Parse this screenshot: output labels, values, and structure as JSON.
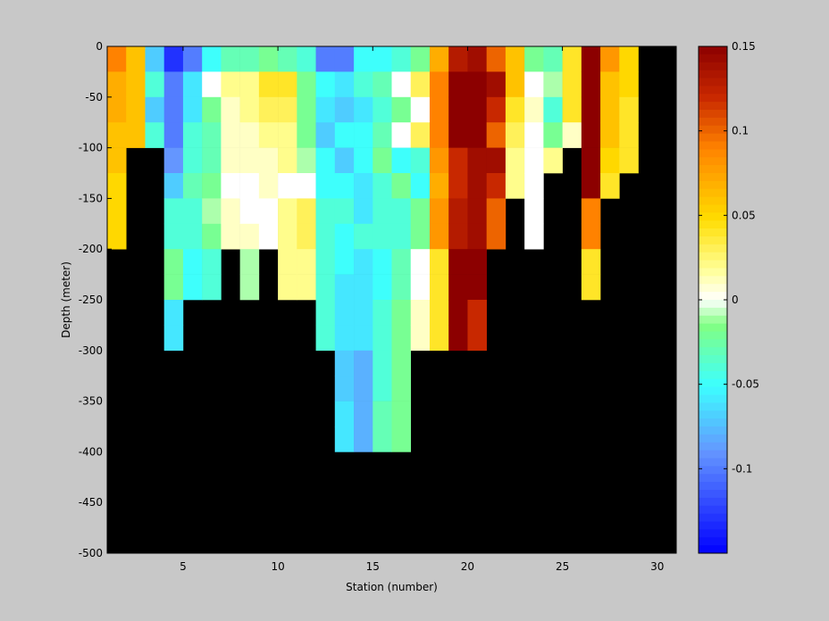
{
  "chart_data": {
    "type": "heatmap",
    "title": "",
    "xlabel": "Station (number)",
    "ylabel": "Depth (meter)",
    "x_range": [
      1,
      31
    ],
    "y_range": [
      -500,
      0
    ],
    "x_ticks": [
      5,
      10,
      15,
      20,
      25,
      30
    ],
    "y_ticks": [
      0,
      -50,
      -100,
      -150,
      -200,
      -250,
      -300,
      -350,
      -400,
      -450,
      -500
    ],
    "colorbar": {
      "range": [
        -0.15,
        0.15
      ],
      "ticks": [
        0.15,
        0.1,
        0.05,
        0,
        -0.05,
        -0.1
      ],
      "tick_labels": [
        "0.15",
        "0.1",
        "0.05",
        "0",
        "-0.05",
        "-0.1"
      ],
      "colormap": "jet-white-center"
    },
    "missing_color": "#000000",
    "depth_bin": 25,
    "columns": [
      {
        "station": 1,
        "values": [
          0.09,
          0.07,
          0.07,
          0.06,
          0.06,
          0.05,
          0.05,
          0.05,
          null,
          null,
          null,
          null,
          null,
          null,
          null,
          null,
          null,
          null,
          null,
          null
        ]
      },
      {
        "station": 2,
        "values": [
          0.06,
          0.06,
          0.06,
          0.06,
          null,
          null,
          null,
          null,
          null,
          null,
          null,
          null,
          null,
          null,
          null,
          null,
          null,
          null,
          null,
          null
        ]
      },
      {
        "station": 3,
        "values": [
          -0.07,
          -0.04,
          -0.07,
          -0.04,
          null,
          null,
          null,
          null,
          null,
          null,
          null,
          null,
          null,
          null,
          null,
          null,
          null,
          null,
          null,
          null
        ]
      },
      {
        "station": 4,
        "values": [
          -0.13,
          -0.1,
          -0.1,
          -0.1,
          -0.09,
          -0.07,
          -0.04,
          -0.04,
          -0.02,
          -0.02,
          -0.06,
          -0.06,
          null,
          null,
          null,
          null,
          null,
          null,
          null,
          null
        ]
      },
      {
        "station": 5,
        "values": [
          -0.1,
          -0.06,
          -0.06,
          -0.04,
          -0.04,
          -0.03,
          -0.04,
          -0.04,
          -0.05,
          -0.05,
          null,
          null,
          null,
          null,
          null,
          null,
          null,
          null,
          null,
          null
        ]
      },
      {
        "station": 6,
        "values": [
          -0.05,
          0.0,
          -0.02,
          -0.03,
          -0.03,
          -0.02,
          -0.01,
          -0.02,
          -0.04,
          -0.04,
          null,
          null,
          null,
          null,
          null,
          null,
          null,
          null,
          null,
          null
        ]
      },
      {
        "station": 7,
        "values": [
          -0.03,
          0.02,
          0.01,
          0.01,
          0.01,
          0.0,
          0.01,
          0.01,
          null,
          null,
          null,
          null,
          null,
          null,
          null,
          null,
          null,
          null,
          null,
          null
        ]
      },
      {
        "station": 8,
        "values": [
          -0.03,
          0.02,
          0.02,
          0.01,
          0.01,
          0.0,
          0.0,
          0.01,
          -0.01,
          -0.01,
          null,
          null,
          null,
          null,
          null,
          null,
          null,
          null,
          null,
          null
        ]
      },
      {
        "station": 9,
        "values": [
          -0.02,
          0.04,
          0.03,
          0.02,
          0.01,
          0.01,
          0.0,
          0.0,
          null,
          null,
          null,
          null,
          null,
          null,
          null,
          null,
          null,
          null,
          null,
          null
        ]
      },
      {
        "station": 10,
        "values": [
          -0.03,
          0.04,
          0.03,
          0.02,
          0.02,
          0.0,
          0.02,
          0.02,
          0.02,
          0.02,
          null,
          null,
          null,
          null,
          null,
          null,
          null,
          null,
          null,
          null
        ]
      },
      {
        "station": 11,
        "values": [
          -0.04,
          -0.02,
          -0.02,
          -0.02,
          -0.01,
          0.0,
          0.03,
          0.03,
          0.02,
          0.02,
          null,
          null,
          null,
          null,
          null,
          null,
          null,
          null,
          null,
          null
        ]
      },
      {
        "station": 12,
        "values": [
          -0.1,
          -0.05,
          -0.06,
          -0.07,
          -0.05,
          -0.05,
          -0.04,
          -0.04,
          -0.04,
          -0.04,
          -0.04,
          -0.04,
          null,
          null,
          null,
          null,
          null,
          null,
          null,
          null
        ]
      },
      {
        "station": 13,
        "values": [
          -0.1,
          -0.06,
          -0.07,
          -0.05,
          -0.07,
          -0.05,
          -0.04,
          -0.05,
          -0.05,
          -0.06,
          -0.06,
          -0.06,
          -0.07,
          -0.07,
          -0.06,
          -0.06,
          null,
          null,
          null,
          null
        ]
      },
      {
        "station": 14,
        "values": [
          -0.05,
          -0.04,
          -0.06,
          -0.05,
          -0.05,
          -0.06,
          -0.06,
          -0.04,
          -0.06,
          -0.06,
          -0.06,
          -0.06,
          -0.08,
          -0.08,
          -0.08,
          -0.08,
          null,
          null,
          null,
          null
        ]
      },
      {
        "station": 15,
        "values": [
          -0.05,
          -0.03,
          -0.04,
          -0.03,
          -0.02,
          -0.04,
          -0.04,
          -0.04,
          -0.05,
          -0.05,
          -0.04,
          -0.04,
          -0.04,
          -0.04,
          -0.03,
          -0.03,
          null,
          null,
          null,
          null
        ]
      },
      {
        "station": 16,
        "values": [
          -0.04,
          0.0,
          -0.02,
          0.0,
          -0.05,
          -0.02,
          -0.04,
          -0.04,
          -0.03,
          -0.03,
          -0.02,
          -0.02,
          -0.02,
          -0.02,
          -0.02,
          -0.02,
          null,
          null,
          null,
          null
        ]
      },
      {
        "station": 17,
        "values": [
          -0.02,
          0.03,
          0.0,
          0.03,
          -0.04,
          -0.05,
          -0.02,
          -0.02,
          0.0,
          0.0,
          0.01,
          0.01,
          null,
          null,
          null,
          null,
          null,
          null,
          null,
          null
        ]
      },
      {
        "station": 18,
        "values": [
          0.07,
          0.09,
          0.09,
          0.09,
          0.08,
          0.07,
          0.08,
          0.08,
          0.04,
          0.04,
          0.04,
          0.04,
          null,
          null,
          null,
          null,
          null,
          null,
          null,
          null
        ]
      },
      {
        "station": 19,
        "values": [
          0.13,
          0.15,
          0.15,
          0.15,
          0.12,
          0.12,
          0.13,
          0.13,
          0.15,
          0.15,
          0.15,
          0.15,
          null,
          null,
          null,
          null,
          null,
          null,
          null,
          null
        ]
      },
      {
        "station": 20,
        "values": [
          0.14,
          0.15,
          0.15,
          0.15,
          0.14,
          0.14,
          0.14,
          0.14,
          0.15,
          0.15,
          0.12,
          0.12,
          null,
          null,
          null,
          null,
          null,
          null,
          null,
          null
        ]
      },
      {
        "station": 21,
        "values": [
          0.1,
          0.14,
          0.12,
          0.1,
          0.14,
          0.12,
          0.1,
          0.1,
          null,
          null,
          null,
          null,
          null,
          null,
          null,
          null,
          null,
          null,
          null,
          null
        ]
      },
      {
        "station": 22,
        "values": [
          0.06,
          0.06,
          0.04,
          0.03,
          0.02,
          0.02,
          null,
          null,
          null,
          null,
          null,
          null,
          null,
          null,
          null,
          null,
          null,
          null,
          null,
          null
        ]
      },
      {
        "station": 23,
        "values": [
          -0.02,
          0.0,
          0.01,
          0.0,
          0.0,
          0.0,
          0.0,
          0.0,
          null,
          null,
          null,
          null,
          null,
          null,
          null,
          null,
          null,
          null,
          null,
          null
        ]
      },
      {
        "station": 24,
        "values": [
          -0.03,
          -0.01,
          -0.04,
          -0.02,
          0.02,
          null,
          null,
          null,
          null,
          null,
          null,
          null,
          null,
          null,
          null,
          null,
          null,
          null,
          null,
          null
        ]
      },
      {
        "station": 25,
        "values": [
          0.04,
          0.04,
          0.04,
          0.01,
          null,
          null,
          null,
          null,
          null,
          null,
          null,
          null,
          null,
          null,
          null,
          null,
          null,
          null,
          null,
          null
        ]
      },
      {
        "station": 26,
        "values": [
          0.15,
          0.15,
          0.15,
          0.15,
          0.15,
          0.15,
          0.09,
          0.09,
          0.04,
          0.04,
          null,
          null,
          null,
          null,
          null,
          null,
          null,
          null,
          null,
          null
        ]
      },
      {
        "station": 27,
        "values": [
          0.08,
          0.06,
          0.06,
          0.06,
          0.05,
          0.04,
          null,
          null,
          null,
          null,
          null,
          null,
          null,
          null,
          null,
          null,
          null,
          null,
          null,
          null
        ]
      },
      {
        "station": 28,
        "values": [
          0.05,
          0.05,
          0.04,
          0.04,
          0.04,
          null,
          null,
          null,
          null,
          null,
          null,
          null,
          null,
          null,
          null,
          null,
          null,
          null,
          null,
          null
        ]
      }
    ]
  }
}
